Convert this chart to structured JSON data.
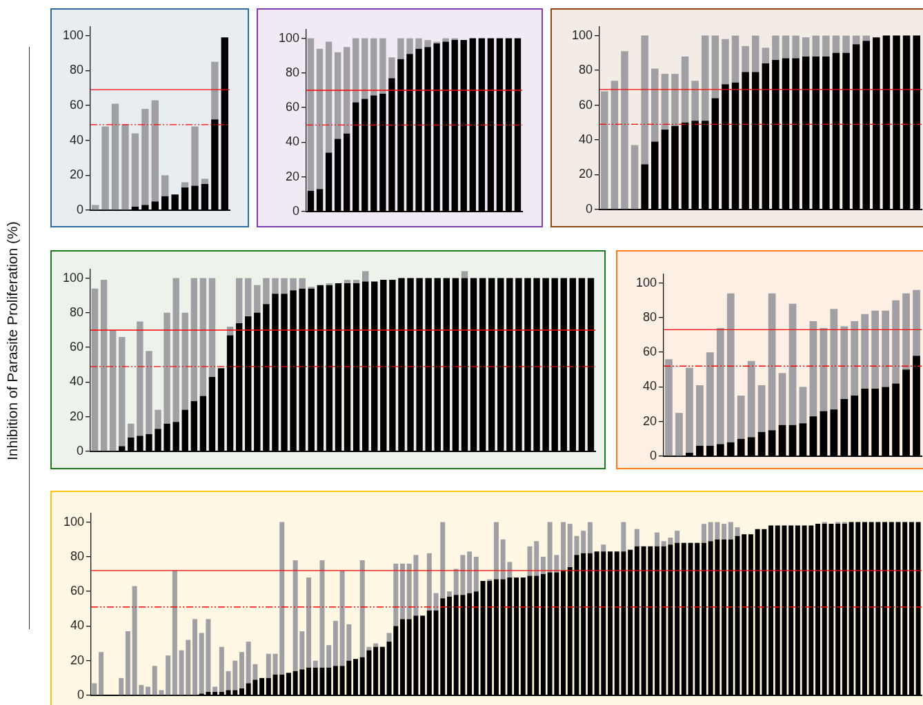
{
  "chart_data": [
    {
      "type": "bar",
      "ylabel": "Inhibition of Parasite Proliferation (%)",
      "stacked": true,
      "categories": [
        null,
        null,
        null,
        null,
        null,
        null,
        null,
        null,
        null,
        null,
        null,
        null,
        null,
        null
      ],
      "series": [
        {
          "color": "#000000",
          "values": [
            null,
            null,
            null,
            null,
            2,
            3,
            5,
            8,
            9,
            13,
            14,
            15,
            52,
            99
          ]
        },
        {
          "color": "#a0a0a4",
          "values": [
            3,
            48,
            61,
            49,
            42,
            55,
            58,
            12,
            null,
            3,
            34,
            3,
            33,
            null
          ]
        }
      ],
      "ylim": [
        0,
        105
      ],
      "yticks": [
        0,
        20,
        40,
        60,
        80,
        100
      ],
      "tick_labels": "y",
      "ref_lines": [
        {
          "axis": "y",
          "value": 69,
          "color": "#ff0000"
        },
        {
          "axis": "y",
          "value": 49,
          "color": "#ff0000",
          "line_style": "dashed"
        }
      ]
    },
    {
      "type": "bar",
      "stacked": true,
      "categories": [
        null,
        null,
        null,
        null,
        null,
        null,
        null,
        null,
        null,
        null,
        null,
        null,
        null,
        null,
        null,
        null,
        null,
        null,
        null,
        null,
        null,
        null,
        null,
        null
      ],
      "series": [
        {
          "color": "#000000",
          "values": [
            12,
            13,
            34,
            42,
            45,
            63,
            65,
            67,
            68,
            77,
            88,
            91,
            94,
            95,
            97,
            98,
            99,
            99,
            100,
            100,
            100,
            100,
            100,
            100
          ]
        },
        {
          "color": "#a0a0a4",
          "values": [
            88,
            81,
            64,
            50,
            50,
            37,
            35,
            33,
            32,
            12,
            12,
            9,
            6,
            4,
            1,
            2,
            1,
            null,
            null,
            null,
            null,
            null,
            null,
            null
          ]
        }
      ],
      "ylim": [
        0,
        105
      ],
      "yticks": [
        0,
        20,
        40,
        60,
        80,
        100
      ],
      "tick_labels": "y",
      "ref_lines": [
        {
          "axis": "y",
          "value": 70,
          "color": "#ff0000"
        },
        {
          "axis": "y",
          "value": 50,
          "color": "#ff0000",
          "line_style": "dashed"
        }
      ]
    },
    {
      "type": "bar",
      "stacked": true,
      "categories": [
        null,
        null,
        null,
        null,
        null,
        null,
        null,
        null,
        null,
        null,
        null,
        null,
        null,
        null,
        null,
        null,
        null,
        null,
        null,
        null,
        null,
        null,
        null,
        null,
        null,
        null,
        null,
        null,
        null,
        null,
        null,
        null
      ],
      "series": [
        {
          "color": "#000000",
          "values": [
            null,
            null,
            null,
            null,
            26,
            39,
            46,
            48,
            50,
            51,
            51,
            64,
            72,
            73,
            79,
            79,
            84,
            86,
            87,
            87,
            88,
            88,
            88,
            90,
            90,
            95,
            97,
            99,
            100,
            100,
            100,
            100
          ]
        },
        {
          "color": "#a0a0a4",
          "values": [
            68,
            74,
            91,
            37,
            74,
            42,
            32,
            30,
            38,
            23,
            49,
            36,
            26,
            27,
            15,
            21,
            9,
            14,
            13,
            13,
            11,
            12,
            12,
            10,
            10,
            5,
            3,
            null,
            null,
            null,
            null,
            null
          ]
        }
      ],
      "ylim": [
        0,
        105
      ],
      "yticks": [
        0,
        20,
        40,
        60,
        80,
        100
      ],
      "tick_labels": "y",
      "ref_lines": [
        {
          "axis": "y",
          "value": 69,
          "color": "#ff0000"
        },
        {
          "axis": "y",
          "value": 49,
          "color": "#ff0000",
          "line_style": "dashed"
        }
      ]
    },
    {
      "type": "bar",
      "stacked": true,
      "categories": [
        null,
        null,
        null,
        null,
        null,
        null,
        null,
        null,
        null,
        null,
        null,
        null,
        null,
        null,
        null,
        null,
        null,
        null,
        null,
        null,
        null,
        null,
        null,
        null,
        null,
        null,
        null,
        null,
        null,
        null,
        null,
        null,
        null,
        null,
        null,
        null,
        null,
        null,
        null,
        null,
        null,
        null,
        null,
        null,
        null,
        null,
        null,
        null,
        null,
        null,
        null,
        null,
        null,
        null,
        null,
        null
      ],
      "series": [
        {
          "color": "#000000",
          "values": [
            null,
            null,
            null,
            3,
            8,
            9,
            10,
            13,
            16,
            17,
            24,
            29,
            32,
            43,
            48,
            67,
            74,
            78,
            80,
            85,
            91,
            91,
            93,
            94,
            94,
            96,
            96,
            97,
            97,
            97,
            98,
            98,
            99,
            99,
            100,
            100,
            100,
            100,
            100,
            100,
            100,
            100,
            100,
            100,
            100,
            100,
            100,
            100,
            100,
            100,
            100,
            100,
            100,
            100,
            100,
            100
          ]
        },
        {
          "color": "#a0a0a4",
          "values": [
            94,
            99,
            70,
            63,
            8,
            66,
            48,
            11,
            64,
            83,
            56,
            71,
            68,
            57,
            null,
            5,
            26,
            22,
            16,
            15,
            9,
            9,
            7,
            6,
            1,
            null,
            1,
            null,
            2,
            2,
            6,
            null,
            null,
            null,
            null,
            null,
            null,
            null,
            null,
            null,
            null,
            4,
            null,
            null,
            null,
            null,
            null,
            null,
            null,
            null,
            null,
            null,
            null,
            null,
            null,
            null
          ]
        }
      ],
      "ylim": [
        0,
        105
      ],
      "yticks": [
        0,
        20,
        40,
        60,
        80,
        100
      ],
      "tick_labels": "y",
      "ref_lines": [
        {
          "axis": "y",
          "value": 70,
          "color": "#ff0000"
        },
        {
          "axis": "y",
          "value": 49,
          "color": "#ff0000",
          "line_style": "dashed"
        }
      ]
    },
    {
      "type": "bar",
      "stacked": true,
      "categories": [
        null,
        null,
        null,
        null,
        null,
        null,
        null,
        null,
        null,
        null,
        null,
        null,
        null,
        null,
        null,
        null,
        null,
        null,
        null,
        null,
        null,
        null,
        null,
        null,
        null
      ],
      "series": [
        {
          "color": "#000000",
          "values": [
            null,
            null,
            2,
            6,
            6,
            7,
            8,
            10,
            11,
            14,
            15,
            18,
            18,
            19,
            23,
            26,
            27,
            33,
            35,
            39,
            39,
            40,
            42,
            50,
            58
          ]
        },
        {
          "color": "#a0a0a4",
          "values": [
            56,
            25,
            49,
            35,
            54,
            67,
            86,
            25,
            44,
            27,
            79,
            30,
            70,
            21,
            55,
            48,
            58,
            42,
            43,
            43,
            45,
            44,
            48,
            44,
            38
          ]
        }
      ],
      "ylim": [
        0,
        105
      ],
      "yticks": [
        0,
        20,
        40,
        60,
        80,
        100
      ],
      "tick_labels": "y",
      "ref_lines": [
        {
          "axis": "y",
          "value": 73,
          "color": "#ff0000"
        },
        {
          "axis": "y",
          "value": 52,
          "color": "#ff0000",
          "line_style": "dashed"
        }
      ]
    },
    {
      "type": "bar",
      "stacked": true,
      "categories": [
        null,
        null,
        null,
        null,
        null,
        null,
        null,
        null,
        null,
        null,
        null,
        null,
        null,
        null,
        null,
        null,
        null,
        null,
        null,
        null,
        null,
        null,
        null,
        null,
        null,
        null,
        null,
        null,
        null,
        null,
        null,
        null,
        null,
        null,
        null,
        null,
        null,
        null,
        null,
        null,
        null,
        null,
        null,
        null,
        null,
        null,
        null,
        null,
        null,
        null,
        null,
        null,
        null,
        null,
        null,
        null,
        null,
        null,
        null,
        null,
        null,
        null,
        null,
        null,
        null,
        null,
        null,
        null,
        null,
        null,
        null,
        null,
        null,
        null,
        null,
        null,
        null,
        null,
        null,
        null,
        null,
        null,
        null,
        null,
        null,
        null,
        null,
        null,
        null,
        null,
        null,
        null,
        null,
        null,
        null,
        null,
        null,
        null,
        null,
        null,
        null,
        null,
        null,
        null,
        null,
        null,
        null,
        null,
        null,
        null,
        null,
        null,
        null,
        null,
        null,
        null,
        null,
        null,
        null,
        null,
        null,
        null,
        null,
        null
      ],
      "series": [
        {
          "color": "#000000",
          "values": [
            null,
            null,
            null,
            null,
            null,
            null,
            null,
            null,
            null,
            null,
            null,
            null,
            null,
            null,
            null,
            null,
            1,
            2,
            2,
            2,
            3,
            3,
            4,
            7,
            9,
            10,
            10,
            12,
            12,
            13,
            14,
            15,
            16,
            16,
            16,
            16,
            17,
            17,
            20,
            21,
            22,
            26,
            28,
            28,
            31,
            40,
            44,
            44,
            46,
            46,
            49,
            49,
            56,
            57,
            58,
            58,
            59,
            60,
            66,
            66,
            67,
            67,
            68,
            68,
            68,
            69,
            69,
            70,
            71,
            71,
            72,
            74,
            81,
            82,
            82,
            83,
            83,
            83,
            83,
            83,
            84,
            86,
            86,
            86,
            86,
            86,
            87,
            88,
            88,
            88,
            88,
            88,
            89,
            90,
            90,
            90,
            92,
            93,
            93,
            96,
            96,
            98,
            98,
            98,
            98,
            98,
            98,
            98,
            99,
            99,
            99,
            99,
            99,
            100,
            100,
            100,
            100,
            100,
            100,
            100,
            100,
            100,
            100,
            100
          ]
        },
        {
          "color": "#a0a0a4",
          "values": [
            7,
            25,
            null,
            null,
            10,
            37,
            63,
            6,
            5,
            17,
            3,
            23,
            72,
            26,
            32,
            44,
            35,
            42,
            3,
            26,
            11,
            17,
            21,
            24,
            9,
            null,
            14,
            12,
            88,
            null,
            64,
            22,
            52,
            4,
            62,
            13,
            26,
            55,
            21,
            null,
            56,
            2,
            2,
            null,
            5,
            36,
            32,
            32,
            35,
            null,
            33,
            10,
            44,
            3,
            15,
            23,
            24,
            20,
            null,
            1,
            33,
            23,
            9,
            null,
            null,
            17,
            20,
            10,
            29,
            10,
            28,
            25,
            11,
            13,
            18,
            null,
            4,
            null,
            null,
            17,
            null,
            10,
            null,
            null,
            8,
            3,
            4,
            7,
            null,
            null,
            null,
            11,
            11,
            10,
            9,
            10,
            5,
            null,
            null,
            null,
            null,
            null,
            null,
            null,
            null,
            null,
            null,
            null,
            null,
            1,
            null,
            1,
            1,
            null,
            null,
            null,
            null,
            null,
            null,
            null,
            null,
            null,
            null,
            null
          ]
        }
      ],
      "ylim": [
        0,
        105
      ],
      "yticks": [
        0,
        20,
        40,
        60,
        80,
        100
      ],
      "tick_labels": "y",
      "ref_lines": [
        {
          "axis": "y",
          "value": 72,
          "color": "#ff0000"
        },
        {
          "axis": "y",
          "value": 51,
          "color": "#ff0000",
          "line_style": "dashed"
        }
      ]
    }
  ]
}
